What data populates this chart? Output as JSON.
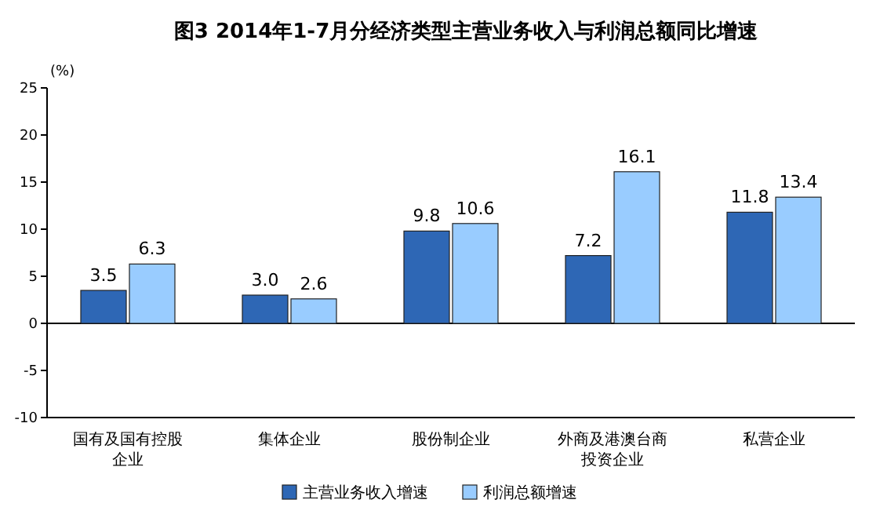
{
  "chart_data": {
    "type": "bar",
    "title": "图3 2014年1-7月分经济类型主营业务收入与利润总额同比增速",
    "ylabel": "(%)",
    "categories": [
      "国有及国有控股企业",
      "集体企业",
      "股份制企业",
      "外商及港澳台商投资企业",
      "私营企业"
    ],
    "series": [
      {
        "name": "主营业务收入增速",
        "color": "#2e67b5",
        "values": [
          3.5,
          3.0,
          9.8,
          7.2,
          11.8
        ],
        "value_labels": [
          "3.5",
          "3.0",
          "9.8",
          "7.2",
          "11.8"
        ]
      },
      {
        "name": "利润总额增速",
        "color": "#99ccff",
        "values": [
          6.3,
          2.6,
          10.6,
          16.1,
          13.4
        ],
        "value_labels": [
          "6.3",
          "2.6",
          "10.6",
          "16.1",
          "13.4"
        ]
      }
    ],
    "ylim": [
      -10,
      25
    ],
    "yticks": [
      -10,
      -5,
      0,
      5,
      10,
      15,
      20,
      25
    ],
    "legend": "bottom"
  }
}
